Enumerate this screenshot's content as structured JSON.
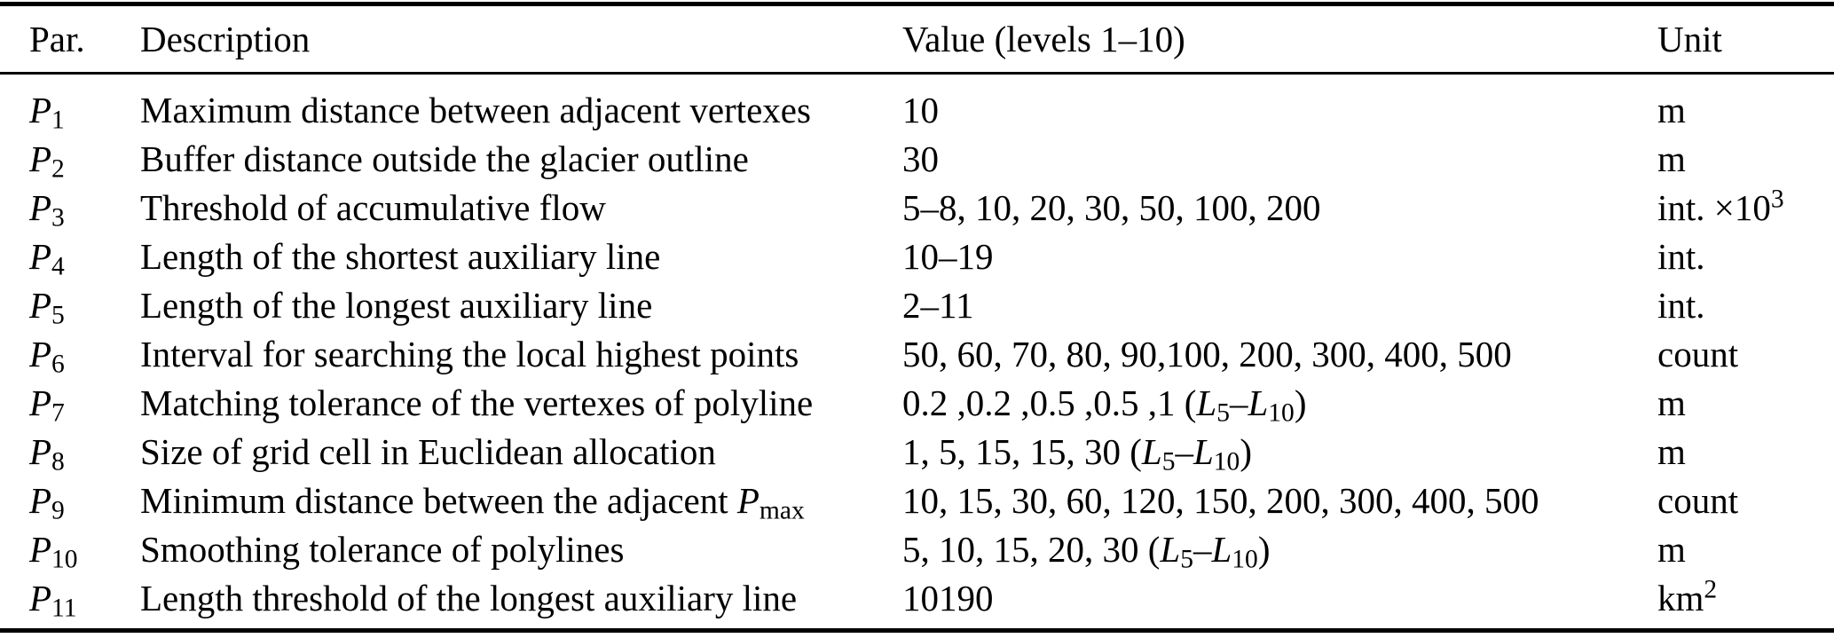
{
  "colors": {
    "background": "#ffffff",
    "text": "#000000",
    "rule": "#000000"
  },
  "table": {
    "headers": [
      "Par.",
      "Description",
      "Value (levels 1–10)",
      "Unit"
    ],
    "rows": [
      {
        "par": [
          {
            "t": "P",
            "i": true
          },
          {
            "t": "1",
            "sub": true
          }
        ],
        "desc": [
          {
            "t": "Maximum distance between adjacent vertexes"
          }
        ],
        "value": [
          {
            "t": "10"
          }
        ],
        "unit": [
          {
            "t": "m"
          }
        ]
      },
      {
        "par": [
          {
            "t": "P",
            "i": true
          },
          {
            "t": "2",
            "sub": true
          }
        ],
        "desc": [
          {
            "t": "Buffer distance outside the glacier outline"
          }
        ],
        "value": [
          {
            "t": "30"
          }
        ],
        "unit": [
          {
            "t": "m"
          }
        ]
      },
      {
        "par": [
          {
            "t": "P",
            "i": true
          },
          {
            "t": "3",
            "sub": true
          }
        ],
        "desc": [
          {
            "t": "Threshold of accumulative flow"
          }
        ],
        "value": [
          {
            "t": "5–8, 10, 20, 30, 50, 100, 200"
          }
        ],
        "unit": [
          {
            "t": "int. ×10"
          },
          {
            "t": "3",
            "sup": true
          }
        ]
      },
      {
        "par": [
          {
            "t": "P",
            "i": true
          },
          {
            "t": "4",
            "sub": true
          }
        ],
        "desc": [
          {
            "t": "Length of the shortest auxiliary line"
          }
        ],
        "value": [
          {
            "t": "10–19"
          }
        ],
        "unit": [
          {
            "t": "int."
          }
        ]
      },
      {
        "par": [
          {
            "t": "P",
            "i": true
          },
          {
            "t": "5",
            "sub": true
          }
        ],
        "desc": [
          {
            "t": "Length of the longest auxiliary line"
          }
        ],
        "value": [
          {
            "t": "2–11"
          }
        ],
        "unit": [
          {
            "t": "int."
          }
        ]
      },
      {
        "par": [
          {
            "t": "P",
            "i": true
          },
          {
            "t": "6",
            "sub": true
          }
        ],
        "desc": [
          {
            "t": "Interval for searching the local highest points"
          }
        ],
        "value": [
          {
            "t": "50, 60, 70, 80, 90,100, 200, 300, 400, 500"
          }
        ],
        "unit": [
          {
            "t": "count"
          }
        ]
      },
      {
        "par": [
          {
            "t": "P",
            "i": true
          },
          {
            "t": "7",
            "sub": true
          }
        ],
        "desc": [
          {
            "t": "Matching tolerance of the vertexes of polyline"
          }
        ],
        "value": [
          {
            "t": "0.2 ,0.2 ,0.5 ,0.5 ,1 ("
          },
          {
            "t": "L",
            "i": true
          },
          {
            "t": "5",
            "sub": true
          },
          {
            "t": "–"
          },
          {
            "t": "L",
            "i": true
          },
          {
            "t": "10",
            "sub": true
          },
          {
            "t": ")"
          }
        ],
        "unit": [
          {
            "t": "m"
          }
        ]
      },
      {
        "par": [
          {
            "t": "P",
            "i": true
          },
          {
            "t": "8",
            "sub": true
          }
        ],
        "desc": [
          {
            "t": "Size of grid cell in Euclidean allocation"
          }
        ],
        "value": [
          {
            "t": "1, 5, 15, 15, 30 ("
          },
          {
            "t": "L",
            "i": true
          },
          {
            "t": "5",
            "sub": true
          },
          {
            "t": "–"
          },
          {
            "t": "L",
            "i": true
          },
          {
            "t": "10",
            "sub": true
          },
          {
            "t": ")"
          }
        ],
        "unit": [
          {
            "t": "m"
          }
        ]
      },
      {
        "par": [
          {
            "t": "P",
            "i": true
          },
          {
            "t": "9",
            "sub": true
          }
        ],
        "desc": [
          {
            "t": "Minimum distance between the adjacent "
          },
          {
            "t": "P",
            "i": true
          },
          {
            "t": "max",
            "sub": true
          }
        ],
        "value": [
          {
            "t": "10, 15, 30, 60, 120, 150, 200, 300, 400, 500"
          }
        ],
        "unit": [
          {
            "t": "count"
          }
        ]
      },
      {
        "par": [
          {
            "t": "P",
            "i": true
          },
          {
            "t": "10",
            "sub": true
          }
        ],
        "desc": [
          {
            "t": "Smoothing tolerance of polylines"
          }
        ],
        "value": [
          {
            "t": "5, 10, 15, 20, 30 ("
          },
          {
            "t": "L",
            "i": true
          },
          {
            "t": "5",
            "sub": true
          },
          {
            "t": "–"
          },
          {
            "t": "L",
            "i": true
          },
          {
            "t": "10",
            "sub": true
          },
          {
            "t": ")"
          }
        ],
        "unit": [
          {
            "t": "m"
          }
        ]
      },
      {
        "par": [
          {
            "t": "P",
            "i": true
          },
          {
            "t": "11",
            "sub": true
          }
        ],
        "desc": [
          {
            "t": "Length threshold of the longest auxiliary line"
          }
        ],
        "value": [
          {
            "t": "10190"
          }
        ],
        "unit": [
          {
            "t": "km"
          },
          {
            "t": "2",
            "sup": true
          }
        ]
      }
    ]
  }
}
